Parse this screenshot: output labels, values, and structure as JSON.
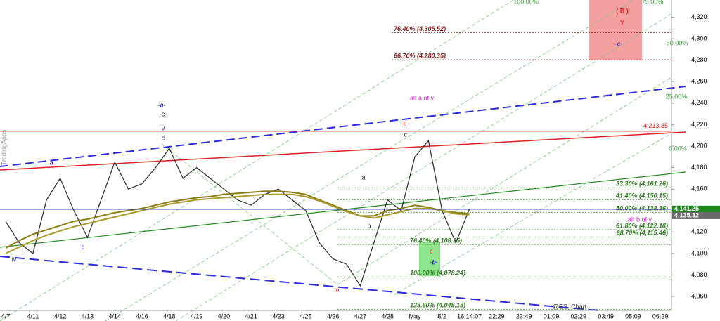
{
  "chart_data": {
    "type": "line",
    "categories": [
      "4/7",
      null,
      "4/11",
      null,
      "4/12",
      null,
      "4/13",
      null,
      "4/14",
      null,
      "4/16",
      null,
      "4/18",
      null,
      "4/19",
      null,
      "4/20",
      null,
      "4/21",
      null,
      "4/23",
      null,
      "4/25",
      null,
      "4/26",
      null,
      "4/27",
      null,
      "4/28",
      null,
      "May",
      null,
      "5/2",
      null,
      "16:14:07",
      null,
      "22:29",
      null,
      "23:49",
      null,
      "01:09",
      null,
      "02:29",
      null,
      "03:49",
      null,
      "05:09",
      null,
      "06:29",
      null
    ],
    "series": [
      {
        "color": "#2b2b2b",
        "values": [
          4130,
          4110,
          4100,
          4150,
          4170,
          4140,
          4115,
          4150,
          4185,
          4160,
          4165,
          4180,
          4198,
          4170,
          4180,
          4170,
          4160,
          4150,
          4145,
          4155,
          4160,
          4150,
          4140,
          4110,
          4095,
          4090,
          4070,
          4110,
          4150,
          4140,
          4190,
          4205,
          4140,
          4110,
          4141.25,
          null,
          null,
          null,
          null,
          null,
          null,
          null,
          null,
          null,
          null,
          null,
          null,
          null,
          null,
          null
        ]
      },
      {
        "color": "#8a7d12",
        "values": [
          4105,
          4112,
          4118,
          4122,
          4126,
          4130,
          4132,
          4135,
          4138,
          4140,
          4142,
          4145,
          4148,
          4150,
          4152,
          4153,
          4155,
          4156,
          4157,
          4158,
          4158,
          4157,
          4155,
          4150,
          4145,
          4140,
          4135,
          4135,
          4140,
          4142,
          4145,
          4143,
          4140,
          4138,
          4137,
          null,
          null,
          null,
          null,
          null,
          null,
          null,
          null,
          null,
          null,
          null,
          null,
          null,
          null,
          null
        ]
      },
      {
        "color": "#a89a2a",
        "values": [
          4100,
          4106,
          4112,
          4117,
          4121,
          4125,
          4128,
          4131,
          4134,
          4137,
          4140,
          4143,
          4146,
          4148,
          4150,
          4151,
          4152,
          4153,
          4154,
          4155,
          4155,
          4155,
          4153,
          4149,
          4144,
          4139,
          4135,
          4133,
          4136,
          4139,
          4142,
          4142,
          4140,
          4137,
          4136,
          null,
          null,
          null,
          null,
          null,
          null,
          null,
          null,
          null,
          null,
          null,
          null,
          null,
          null,
          null
        ]
      }
    ],
    "ylim": [
      4047,
      4336
    ],
    "yticks": [
      {
        "value": 4060,
        "label": "4,060"
      },
      {
        "value": 4080,
        "label": "4,080"
      },
      {
        "value": 4100,
        "label": "4,100"
      },
      {
        "value": 4120,
        "label": "4,120"
      },
      {
        "value": 4140,
        "label": "4,140"
      },
      {
        "value": 4160,
        "label": "4,160"
      },
      {
        "value": 4180,
        "label": "4,180"
      },
      {
        "value": 4200,
        "label": "4,200"
      },
      {
        "value": 4220,
        "label": "4,220"
      },
      {
        "value": 4240,
        "label": "4,240"
      },
      {
        "value": 4260,
        "label": "4,260"
      },
      {
        "value": 4280,
        "label": "4,280"
      },
      {
        "value": 4300,
        "label": "4,300"
      },
      {
        "value": 4320,
        "label": "4,320"
      }
    ],
    "fib_levels": [
      {
        "value": 4305.52,
        "label": "76.40% (4,305.52)",
        "color": "#8b1a1a"
      },
      {
        "value": 4280.35,
        "label": "66.70% (4,280.35)",
        "color": "#8b1a1a"
      },
      {
        "value": 4161.26,
        "label": "33.30% (4,161.26)",
        "color": "#2e7d1f"
      },
      {
        "value": 4150.15,
        "label": "41.40% (4,150.15)",
        "color": "#2e7d1f"
      },
      {
        "value": 4138.36,
        "label": "50.00% (4,138.36)",
        "color": "#2e7d1f"
      },
      {
        "value": 4122.18,
        "label": "61.80% (4,122.18)",
        "color": "#2e7d1f"
      },
      {
        "value": 4115.46,
        "label": "68.70% (4,115.46)",
        "color": "#2e7d1f"
      },
      {
        "value": 4108.35,
        "label": "76.40% (4,108.35)",
        "color": "#2e7d1f"
      },
      {
        "value": 4078.24,
        "label": "100.00% (4,078.24)",
        "color": "#2e7d1f"
      },
      {
        "value": 4048.13,
        "label": "123.60% (4,048.13)",
        "color": "#2e7d1f"
      }
    ],
    "price_tags": [
      {
        "value": 4213.85,
        "label": "4,213.85",
        "color": "#e02020"
      },
      {
        "value": 4141.25,
        "label": "4,141.25",
        "color": "#1e8a1e"
      },
      {
        "value": 4135.32,
        "label": "4,135.32",
        "color": "#6a6a6a"
      }
    ],
    "annotations": [
      {
        "text": "-a-",
        "color": "#1a1aa8"
      },
      {
        "text": "-c-",
        "color": "#111111"
      },
      {
        "text": "v",
        "color": "#1a1aa8"
      },
      {
        "text": "c",
        "color": "#1a1aa8"
      },
      {
        "text": "a",
        "color": "#1a1aa8"
      },
      {
        "text": "b",
        "color": "#1a1aa8"
      },
      {
        "text": "iv",
        "color": "#1a1aa8"
      },
      {
        "text": "a",
        "color": "#e02020"
      },
      {
        "text": "a",
        "color": "#111111"
      },
      {
        "text": "b",
        "color": "#111111"
      },
      {
        "text": "alt a of v",
        "color": "#d020d0"
      },
      {
        "text": "b",
        "color": "#e02020"
      },
      {
        "text": "c",
        "color": "#111111"
      },
      {
        "text": "c",
        "color": "#e02020"
      },
      {
        "text": "-b-",
        "color": "#1a1aa8"
      },
      {
        "text": "( B )",
        "color": "#e02020"
      },
      {
        "text": "Y",
        "color": "#e02020"
      },
      {
        "text": "-c-",
        "color": "#1a1aa8"
      },
      {
        "text": "alt b of y",
        "color": "#d020d0"
      },
      {
        "text": "@ES_Chart",
        "color": "#333333"
      },
      {
        "text": "TradingApps",
        "color": "#999999"
      },
      {
        "text": "100.00%",
        "color": "#3a9a3a"
      },
      {
        "text": "75.00%",
        "color": "#3a9a3a"
      },
      {
        "text": "50.00%",
        "color": "#3a9a3a"
      },
      {
        "text": "25.00%",
        "color": "#3a9a3a"
      },
      {
        "text": "0.00%",
        "color": "#3a9a3a"
      }
    ]
  }
}
